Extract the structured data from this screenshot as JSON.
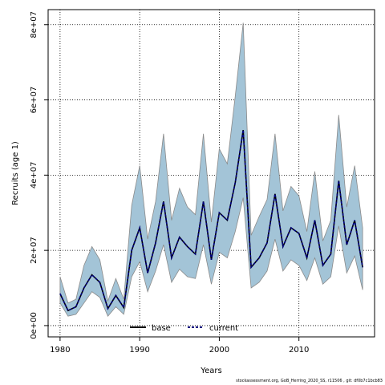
{
  "chart_data": {
    "type": "area",
    "xlabel": "Years",
    "ylabel": "Recruits (age 1)",
    "xlim": [
      1978.5,
      2019.5
    ],
    "ylim": [
      -3000000,
      84000000
    ],
    "x_ticks": [
      1980,
      1990,
      2000,
      2010
    ],
    "y_ticks": [
      0,
      20000000,
      40000000,
      60000000,
      80000000
    ],
    "y_tick_labels": [
      "0e+00",
      "2e+07",
      "4e+07",
      "6e+07",
      "8e+07"
    ],
    "grid": true,
    "legend_position": "bottom",
    "colors": {
      "band_fill": "#a3c4d7",
      "band_edge": "#8a8a8a",
      "base": "#000000",
      "current": "#000080"
    },
    "x": [
      1980,
      1981,
      1982,
      1983,
      1984,
      1985,
      1986,
      1987,
      1988,
      1989,
      1990,
      1991,
      1992,
      1993,
      1994,
      1995,
      1996,
      1997,
      1998,
      1999,
      2000,
      2001,
      2002,
      2003,
      2004,
      2005,
      2006,
      2007,
      2008,
      2009,
      2010,
      2011,
      2012,
      2013,
      2014,
      2015,
      2016,
      2017,
      2018
    ],
    "series": [
      {
        "name": "base",
        "values": [
          8500000,
          4000000,
          5000000,
          10000000,
          13500000,
          11500000,
          4500000,
          8000000,
          4800000,
          20000000,
          26000000,
          14000000,
          22000000,
          33000000,
          18000000,
          23500000,
          21000000,
          19000000,
          33000000,
          17500000,
          30000000,
          28000000,
          38000000,
          52000000,
          15500000,
          18000000,
          22000000,
          35000000,
          21000000,
          26000000,
          24500000,
          18000000,
          28000000,
          16000000,
          19000000,
          38500000,
          21500000,
          28000000,
          15500000
        ]
      },
      {
        "name": "current",
        "values": [
          8500000,
          4000000,
          5000000,
          10000000,
          13500000,
          11500000,
          4500000,
          8000000,
          4800000,
          20000000,
          26000000,
          14000000,
          22000000,
          33000000,
          18000000,
          23500000,
          21000000,
          19000000,
          33000000,
          17500000,
          30000000,
          28000000,
          38000000,
          52000000,
          15500000,
          18000000,
          22000000,
          35000000,
          21000000,
          26000000,
          24500000,
          18000000,
          28000000,
          16000000,
          19000000,
          38500000,
          21500000,
          28000000,
          15500000
        ]
      }
    ],
    "band_upper": [
      13000000,
      6000000,
      7000000,
      16000000,
      21000000,
      17500000,
      6500000,
      12500000,
      7000000,
      32000000,
      42500000,
      23000000,
      33000000,
      51000000,
      28000000,
      36500000,
      31500000,
      29500000,
      51000000,
      27500000,
      47000000,
      43000000,
      61000000,
      80500000,
      24000000,
      29000000,
      33500000,
      51000000,
      30500000,
      37000000,
      34500000,
      25000000,
      41000000,
      22500000,
      28000000,
      56000000,
      31500000,
      42500000,
      26000000
    ],
    "band_lower": [
      6000000,
      2500000,
      3000000,
      6000000,
      9000000,
      7500000,
      2500000,
      5000000,
      3000000,
      13000000,
      17000000,
      9000000,
      14500000,
      21500000,
      11500000,
      15000000,
      13000000,
      12500000,
      21500000,
      11000000,
      19500000,
      18000000,
      25000000,
      34000000,
      10000000,
      11500000,
      14500000,
      23000000,
      14500000,
      17500000,
      16000000,
      12000000,
      18000000,
      11000000,
      13000000,
      26500000,
      14000000,
      18500000,
      9500000
    ]
  },
  "footer": "stockassessment.org, GoB_Herring_2020_SS, r11506 , git: df0b7c1bcb83"
}
